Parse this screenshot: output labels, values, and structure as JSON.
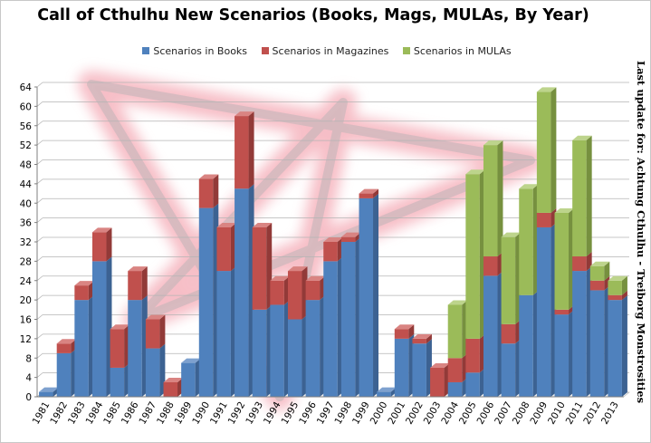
{
  "side_note": "Last update for: Achtung Cthulhu - Treiborg Monstrosities",
  "colors": {
    "books_front": "#4f81bd",
    "books_side": "#3c6292",
    "books_top": "#7ea1cf",
    "mags_front": "#c0504d",
    "mags_side": "#923a38",
    "mags_top": "#d98482",
    "mulas_front": "#9bbb59",
    "mulas_side": "#76903f",
    "mulas_top": "#bdd48c",
    "grid": "#b4b4b4",
    "axis": "#7f7f7f",
    "star": "#f08a9a"
  },
  "chart_data": {
    "type": "bar",
    "stacked": true,
    "title": "Call of Cthulhu  New Scenarios  (Books, Mags, MULAs, By Year)",
    "xlabel": "",
    "ylabel": "",
    "ylim": [
      0,
      64
    ],
    "yticks": [
      0,
      4,
      8,
      12,
      16,
      20,
      24,
      28,
      32,
      36,
      40,
      44,
      48,
      52,
      56,
      60,
      64
    ],
    "grid": true,
    "legend_position": "top",
    "categories": [
      "1981",
      "1982",
      "1983",
      "1984",
      "1985",
      "1986",
      "1987",
      "1988",
      "1989",
      "1990",
      "1991",
      "1992",
      "1993",
      "1994",
      "1995",
      "1996",
      "1997",
      "1998",
      "1999",
      "2000",
      "2001",
      "2002",
      "2003",
      "2004",
      "2005",
      "2006",
      "2007",
      "2008",
      "2009",
      "2010",
      "2011",
      "2012",
      "2013"
    ],
    "series": [
      {
        "name": "Scenarios in Books",
        "color": "#4f81bd",
        "values": [
          1,
          9,
          20,
          28,
          6,
          20,
          10,
          0,
          7,
          39,
          26,
          43,
          18,
          19,
          16,
          20,
          28,
          32,
          41,
          1,
          12,
          11,
          0,
          3,
          5,
          25,
          11,
          21,
          35,
          17,
          26,
          22,
          20
        ]
      },
      {
        "name": "Scenarios in Magazines",
        "color": "#c0504d",
        "values": [
          0,
          2,
          3,
          6,
          8,
          6,
          6,
          3,
          0,
          6,
          9,
          15,
          17,
          5,
          10,
          4,
          4,
          1,
          1,
          0,
          2,
          1,
          6,
          5,
          7,
          4,
          4,
          0,
          3,
          1,
          3,
          2,
          1
        ]
      },
      {
        "name": "Scenarios in MULAs",
        "color": "#9bbb59",
        "values": [
          0,
          0,
          0,
          0,
          0,
          0,
          0,
          0,
          0,
          0,
          0,
          0,
          0,
          0,
          0,
          0,
          0,
          0,
          0,
          0,
          0,
          0,
          0,
          11,
          34,
          23,
          18,
          22,
          25,
          20,
          24,
          3,
          3
        ]
      }
    ]
  }
}
